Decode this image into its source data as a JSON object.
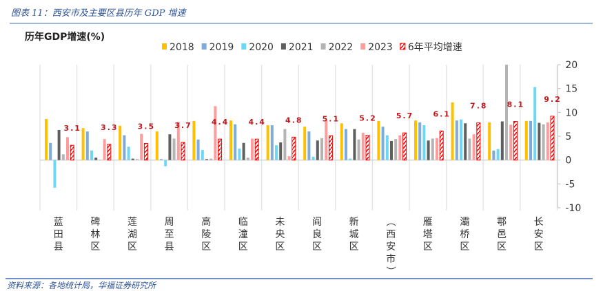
{
  "figure_title": "图表 11：西安市及主要区县历年 GDP 增速",
  "source": "资料来源：各地统计局，华福证券研究所",
  "chart_data": {
    "type": "bar",
    "title": "历年GDP增速(%)",
    "ylim": [
      -10,
      20
    ],
    "yticks": [
      -10,
      -5,
      0,
      5,
      10,
      15,
      20
    ],
    "y_axis_side": "right",
    "grid": "vertical category separators",
    "legend_position": "top",
    "categories": [
      "蓝田县",
      "碑林区",
      "莲湖区",
      "周至县",
      "高陵区",
      "临潼区",
      "未央区",
      "阎良区",
      "新城区",
      "（西安市）",
      "雁塔区",
      "灞桥区",
      "鄠邑区",
      "长安区"
    ],
    "series": [
      {
        "name": "2018",
        "color": "#ffc000",
        "values": [
          8.6,
          6.7,
          7.2,
          6.0,
          8.2,
          8.3,
          7.3,
          7.0,
          7.7,
          8.2,
          8.3,
          12.1,
          7.9,
          8.2
        ]
      },
      {
        "name": "2019",
        "color": "#7faadc",
        "values": [
          3.6,
          6.0,
          5.2,
          0.2,
          4.3,
          7.5,
          7.3,
          6.0,
          6.5,
          7.0,
          7.9,
          8.3,
          2.0,
          8.2
        ]
      },
      {
        "name": "2020",
        "color": "#6dd7f5",
        "values": [
          -5.8,
          2.0,
          2.8,
          -1.3,
          2.1,
          2.4,
          3.1,
          0.7,
          0.3,
          5.2,
          7.3,
          8.5,
          2.3,
          15.3
        ]
      },
      {
        "name": "2021",
        "color": "#5f5f5f",
        "values": [
          6.3,
          0.5,
          0.3,
          5.4,
          0.2,
          3.6,
          3.7,
          4.1,
          6.5,
          4.0,
          4.1,
          7.7,
          8.1,
          7.8
        ]
      },
      {
        "name": "2022",
        "color": "#b4b4b4",
        "values": [
          1.2,
          0.1,
          0.2,
          4.5,
          0.3,
          0.5,
          6.5,
          4.6,
          4.3,
          4.4,
          4.5,
          4.5,
          20.5,
          7.5
        ]
      },
      {
        "name": "2023",
        "color": "#ff9c9c",
        "values": [
          4.8,
          4.4,
          5.5,
          8.0,
          11.3,
          4.5,
          0.8,
          8.3,
          5.7,
          5.2,
          4.6,
          5.4,
          7.4,
          7.9
        ]
      },
      {
        "name": "6年平均增速",
        "color": "#ff0000",
        "pattern": "hatched",
        "values": [
          3.1,
          3.3,
          3.5,
          3.7,
          4.4,
          4.4,
          4.8,
          5.1,
          5.2,
          5.7,
          6.1,
          7.8,
          8.1,
          9.2
        ],
        "data_labels": [
          "3.1",
          "3.3",
          "3.5",
          "3.7",
          "4.4",
          "4.4",
          "4.8",
          "5.1",
          "5.2",
          "5.7",
          "6.1",
          "7.8",
          "8.1",
          "9.2"
        ]
      }
    ]
  }
}
